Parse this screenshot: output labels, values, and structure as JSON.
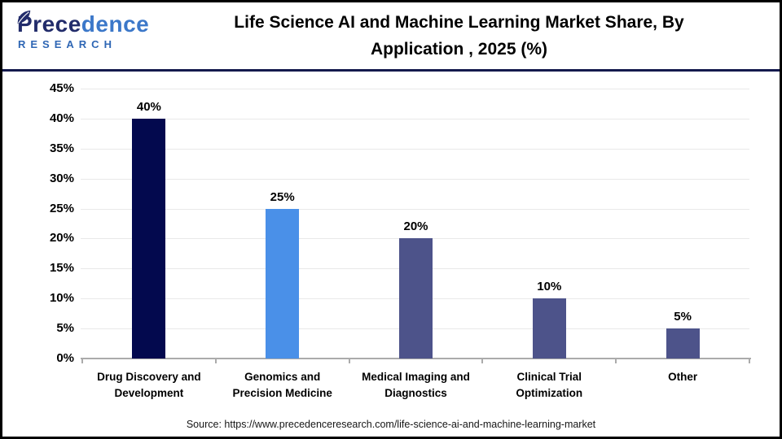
{
  "header": {
    "logo": {
      "brand_part_dark": "Prece",
      "brand_part_light": "dence",
      "brand_line2": "RESEARCH",
      "brand_dark_color": "#222C6B",
      "brand_light_color": "#3C78C9",
      "research_color": "#2E66B4",
      "leaf_icon_color": "#222C6B"
    },
    "title": "Life Science AI and Machine Learning Market Share, By\nApplication , 2025 (%)"
  },
  "chart_data": {
    "type": "bar",
    "title": "Life Science AI and Machine Learning Market Share, By Application , 2025 (%)",
    "categories": [
      "Drug Discovery and\nDevelopment",
      "Genomics and\nPrecision Medicine",
      "Medical Imaging and\nDiagnostics",
      "Clinical Trial\nOptimization",
      "Other"
    ],
    "values": [
      40,
      25,
      20,
      10,
      5
    ],
    "data_labels": [
      "40%",
      "25%",
      "20%",
      "10%",
      "5%"
    ],
    "bar_colors": [
      "#03094E",
      "#4A90E8",
      "#4D538A",
      "#4D538A",
      "#4D538A"
    ],
    "xlabel": "",
    "ylabel": "",
    "ylim": [
      0,
      45
    ],
    "ytick_step": 5,
    "ytick_labels": [
      "0%",
      "5%",
      "10%",
      "15%",
      "20%",
      "25%",
      "30%",
      "35%",
      "40%",
      "45%"
    ],
    "grid": true,
    "gridline_color": "#E9E9E9",
    "axis_color": "#ABABAB",
    "legend_position": "none"
  },
  "footer": {
    "source": "Source: https://www.precedenceresearch.com/life-science-ai-and-machine-learning-market"
  }
}
